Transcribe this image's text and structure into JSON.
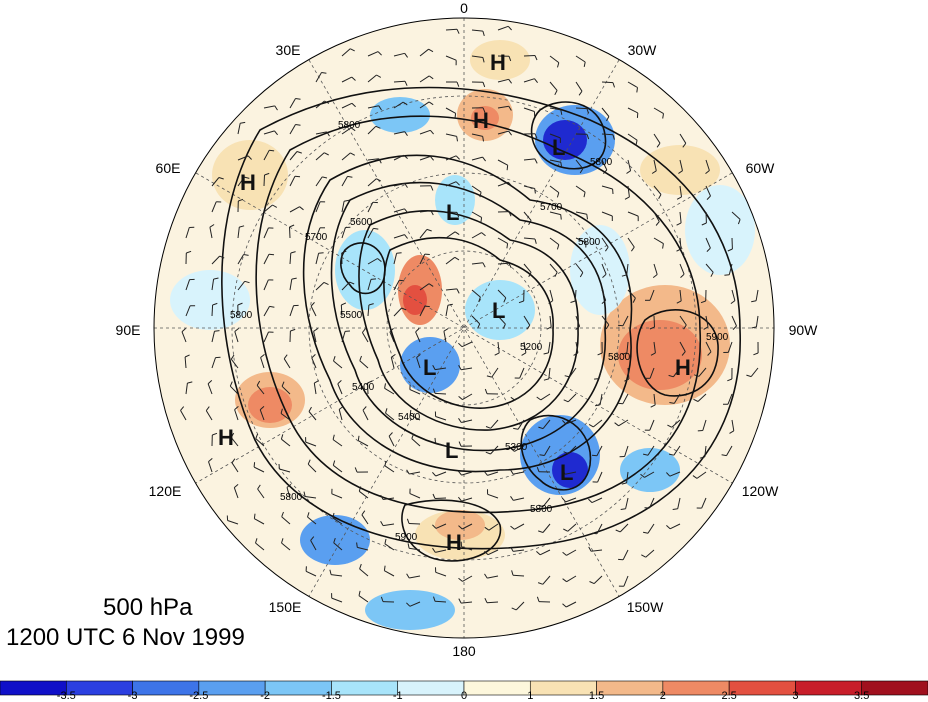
{
  "title": {
    "level": "500 hPa",
    "time": "1200 UTC 6 Nov 1999"
  },
  "longitude_labels": {
    "lon_0": "0",
    "lon_30w": "30W",
    "lon_60w": "60W",
    "lon_90w": "90W",
    "lon_120w": "120W",
    "lon_150w": "150W",
    "lon_180": "180",
    "lon_150e": "150E",
    "lon_120e": "120E",
    "lon_90e": "90E",
    "lon_60e": "60E",
    "lon_30e": "30E"
  },
  "pressure_centers": {
    "high": "H",
    "low": "L"
  },
  "contour_labels": [
    "5800",
    "5700",
    "5600",
    "5800",
    "5500",
    "5400",
    "5300",
    "5200",
    "5700",
    "5800",
    "5900",
    "5900",
    "5800",
    "5800",
    "5800",
    "5800",
    "5400"
  ],
  "colorbar": {
    "ticks": [
      "-3.5",
      "-3",
      "-2.5",
      "-2",
      "-1.5",
      "-1",
      "0",
      "1",
      "1.5",
      "2",
      "2.5",
      "3",
      "3.5"
    ],
    "colors": [
      "#1010c8",
      "#2b3fe0",
      "#3d74e8",
      "#5a9ff0",
      "#7cc6f6",
      "#a8e4fa",
      "#d8f3fc",
      "#fdf7dc",
      "#f8e2b4",
      "#f3b98a",
      "#ee8a64",
      "#e35040",
      "#c81e2a",
      "#a0101e"
    ]
  }
}
